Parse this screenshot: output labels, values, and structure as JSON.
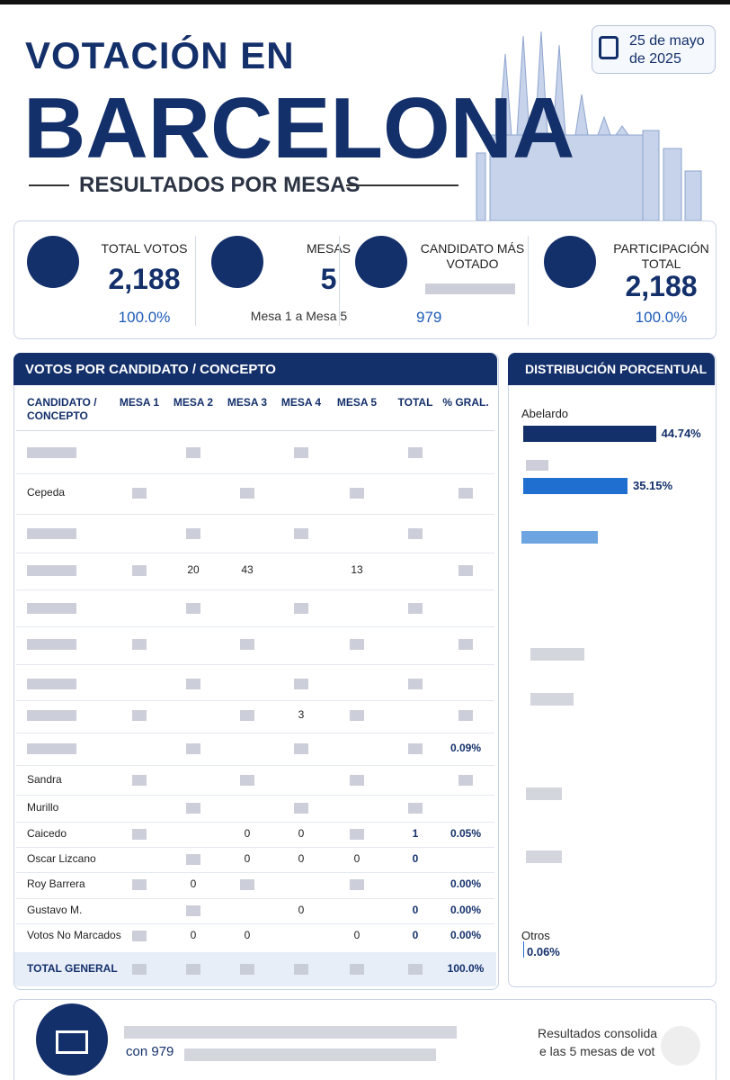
{
  "header": {
    "title_line1": "VOTACIÓN EN",
    "title_line2": "BARCELONA",
    "subtitle": "RESULTADOS POR MESAS",
    "date": "25 de mayo de 2025"
  },
  "stats": [
    {
      "label": "TOTAL VOTOS",
      "value": "2,188",
      "note": "100.0%"
    },
    {
      "label": "MESAS",
      "value": "5",
      "note": "Mesa 1 a Mesa 5"
    },
    {
      "label": "CANDIDATO MÁS VOTADO",
      "value": null,
      "note": "979"
    },
    {
      "label": "PARTICIPACIÓN TOTAL",
      "value": "2,188",
      "note": "100.0%"
    }
  ],
  "table": {
    "title": "VOTOS POR CANDIDATO / CONCEPTO",
    "columns": [
      "CANDIDATO / CONCEPTO",
      "MESA 1",
      "MESA 2",
      "MESA 3",
      "MESA 4",
      "MESA 5",
      "TOTAL",
      "% GRAL."
    ],
    "rows": [
      [
        null,
        null,
        null,
        null,
        null,
        null,
        null,
        null
      ],
      [
        "Cepeda",
        null,
        null,
        null,
        null,
        null,
        null,
        null
      ],
      [
        null,
        null,
        null,
        null,
        null,
        null,
        null,
        null
      ],
      [
        null,
        null,
        "20",
        "43",
        null,
        "13",
        null,
        null
      ],
      [
        null,
        null,
        null,
        null,
        null,
        null,
        null,
        null
      ],
      [
        null,
        null,
        null,
        null,
        null,
        null,
        null,
        null
      ],
      [
        null,
        null,
        null,
        null,
        null,
        null,
        null,
        null
      ],
      [
        null,
        null,
        null,
        null,
        "3",
        null,
        null,
        null
      ],
      [
        null,
        null,
        null,
        null,
        null,
        null,
        null,
        "0.09%"
      ],
      [
        "Sandra",
        null,
        null,
        null,
        null,
        null,
        null,
        null
      ],
      [
        "Murillo",
        null,
        null,
        null,
        null,
        null,
        null,
        null
      ],
      [
        "Caicedo",
        null,
        null,
        "0",
        "0",
        null,
        "1",
        "0.05%"
      ],
      [
        "Oscar Lizcano",
        null,
        null,
        "0",
        "0",
        "0",
        "0",
        null
      ],
      [
        "Roy Barrera",
        null,
        "0",
        null,
        null,
        null,
        null,
        "0.00%"
      ],
      [
        "Gustavo M.",
        null,
        null,
        null,
        "0",
        null,
        "0",
        "0.00%"
      ],
      [
        "Votos No Marcados",
        null,
        "0",
        "0",
        null,
        "0",
        "0",
        "0.00%"
      ]
    ],
    "total": [
      "TOTAL GENERAL",
      null,
      null,
      null,
      null,
      null,
      null,
      "100.0%"
    ]
  },
  "distribution": {
    "title": "DISTRIBUCIÓN PORCENTUAL",
    "items": [
      {
        "name": "Abelardo",
        "value": 44.74,
        "value_label": "44.74%"
      },
      {
        "name": null,
        "value": 35.15,
        "value_label": "35.15%"
      },
      {
        "name": "Otros",
        "value": 0.06,
        "value_label": "0.06%"
      }
    ]
  },
  "footer": {
    "line1": "con 979",
    "note1": "Resultados consolida",
    "note2": "e las 5 mesas de vot"
  }
}
